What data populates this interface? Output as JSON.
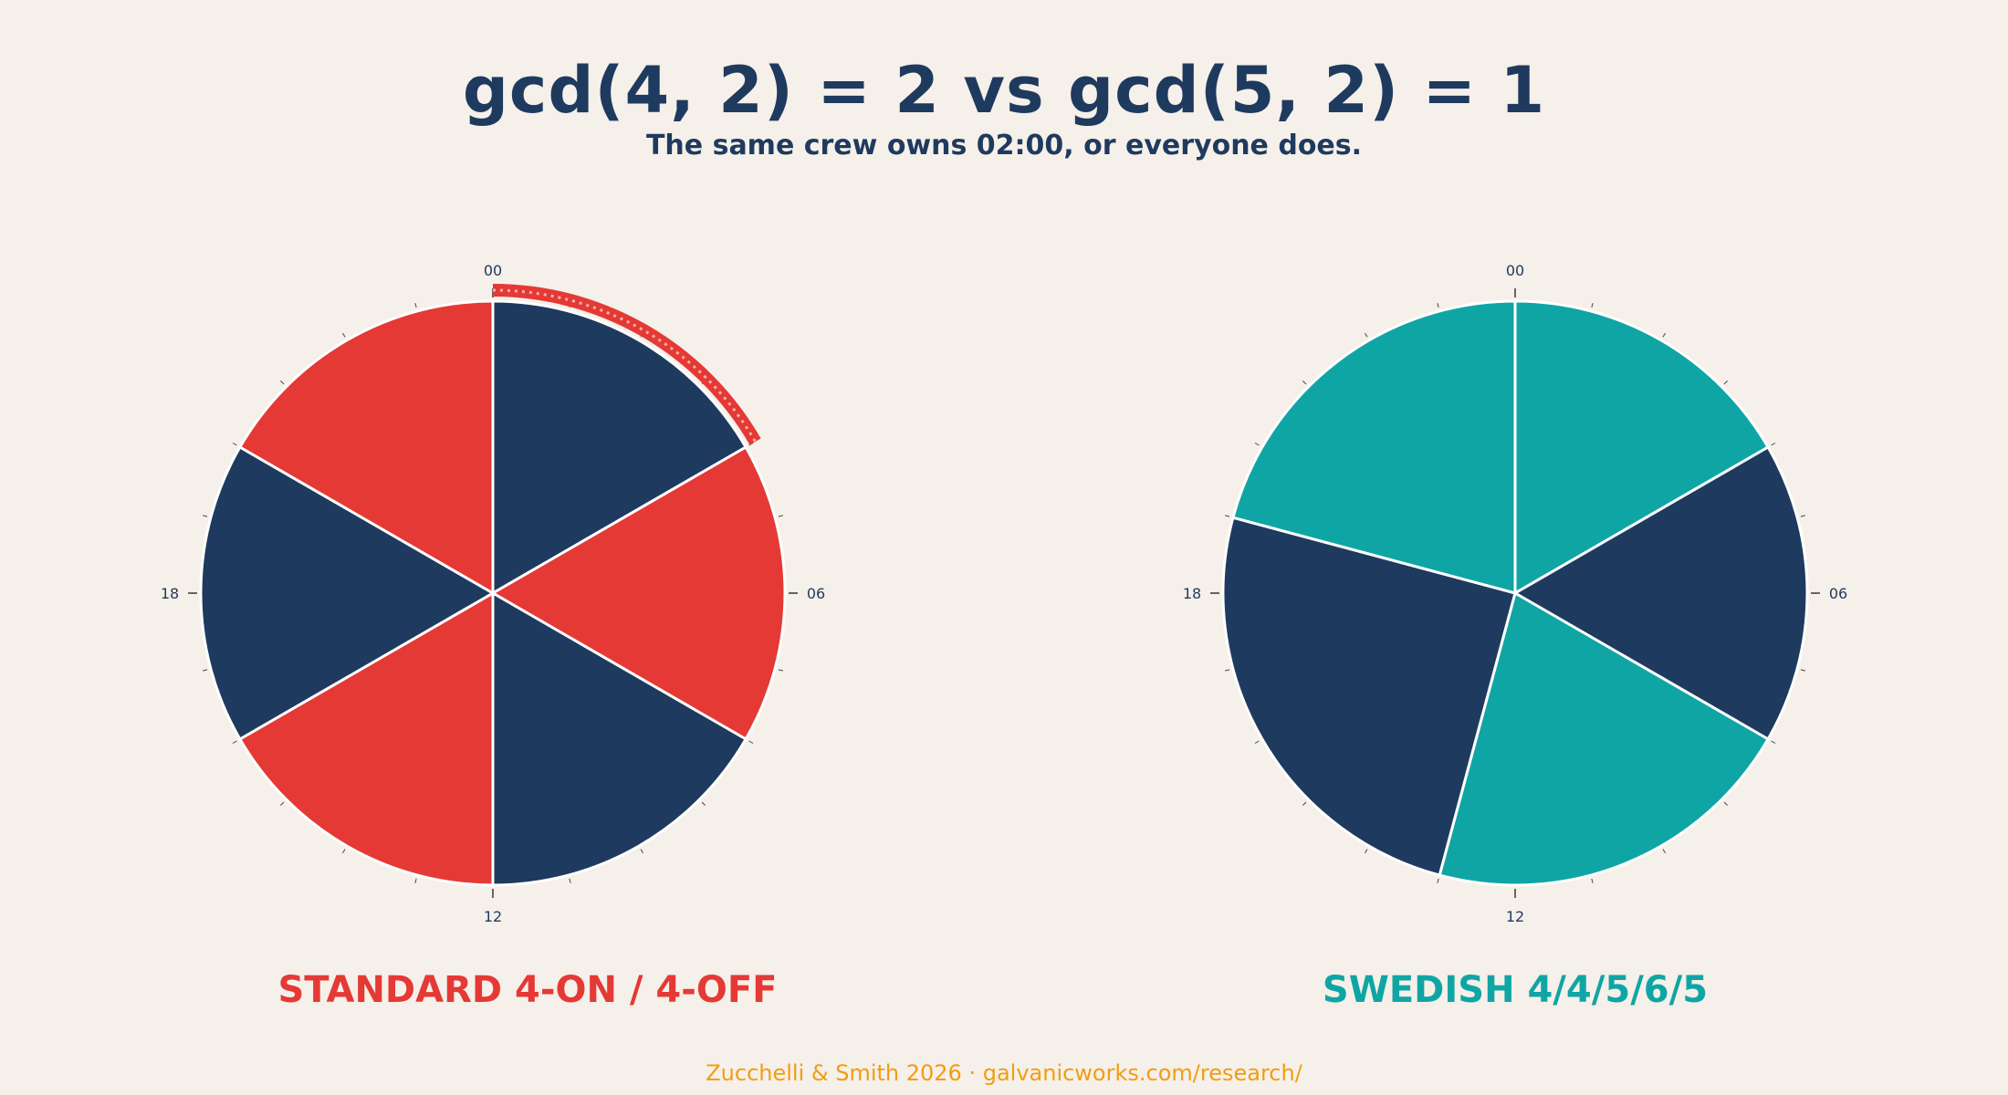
{
  "header": {
    "title": "gcd(4, 2) = 2  vs  gcd(5, 2) = 1",
    "subtitle": "The same crew owns 02:00, or everyone does."
  },
  "colors": {
    "background": "#f5f0e9",
    "navy": "#1f3a5f",
    "red": "#e53935",
    "teal": "#10a5a5",
    "footer": "#f39c12"
  },
  "chart_data": [
    {
      "type": "pie",
      "title": "STANDARD 4-ON / 4-OFF",
      "title_color": "#e53935",
      "unit": "hours",
      "total": 24,
      "start": "00",
      "direction": "clockwise",
      "tick_labels": [
        "00",
        "06",
        "12",
        "18"
      ],
      "slices": [
        {
          "from": 0,
          "to": 4,
          "value": 4,
          "color": "#1f3a5f"
        },
        {
          "from": 4,
          "to": 8,
          "value": 4,
          "color": "#e53935"
        },
        {
          "from": 8,
          "to": 12,
          "value": 4,
          "color": "#1f3a5f"
        },
        {
          "from": 12,
          "to": 16,
          "value": 4,
          "color": "#e53935"
        },
        {
          "from": 16,
          "to": 20,
          "value": 4,
          "color": "#1f3a5f"
        },
        {
          "from": 20,
          "to": 24,
          "value": 4,
          "color": "#e53935"
        }
      ],
      "highlight_arc": {
        "from": 0,
        "to": 4,
        "color": "#e53935"
      }
    },
    {
      "type": "pie",
      "title": "SWEDISH 4/4/5/6/5",
      "title_color": "#10a5a5",
      "unit": "hours",
      "total": 24,
      "start": "00",
      "direction": "clockwise",
      "tick_labels": [
        "00",
        "06",
        "12",
        "18"
      ],
      "slices": [
        {
          "from": 0,
          "to": 4,
          "value": 4,
          "color": "#10a5a5"
        },
        {
          "from": 4,
          "to": 8,
          "value": 4,
          "color": "#1f3a5f"
        },
        {
          "from": 8,
          "to": 13,
          "value": 5,
          "color": "#10a5a5"
        },
        {
          "from": 13,
          "to": 19,
          "value": 6,
          "color": "#1f3a5f"
        },
        {
          "from": 19,
          "to": 24,
          "value": 5,
          "color": "#10a5a5"
        }
      ]
    }
  ],
  "footer": {
    "credit": "Zucchelli & Smith 2026  ·  galvanicworks.com/research/"
  }
}
